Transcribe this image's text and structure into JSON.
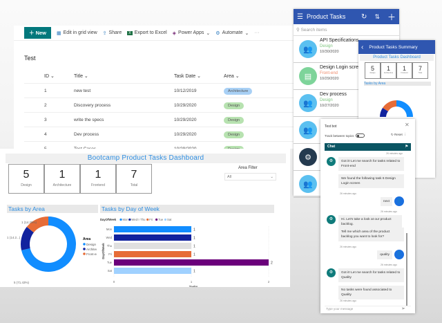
{
  "sharepoint": {
    "toolbar": {
      "new": "New",
      "edit_grid": "Edit in grid view",
      "share": "Share",
      "export": "Export to Excel",
      "power_apps": "Power Apps",
      "automate": "Automate",
      "more": "···"
    },
    "list_title": "Test",
    "columns": [
      "ID",
      "Title",
      "Task Date",
      "Area"
    ],
    "rows": [
      {
        "id": "1",
        "title": "new test",
        "date": "10/12/2019",
        "area": "Architecture",
        "color": "#a8d0f5"
      },
      {
        "id": "2",
        "title": "Discovery process",
        "date": "10/29/2020",
        "area": "Design",
        "color": "#b7e2b0"
      },
      {
        "id": "3",
        "title": "write the specs",
        "date": "10/29/2020",
        "area": "Design",
        "color": "#b7e2b0"
      },
      {
        "id": "4",
        "title": "Dev process",
        "date": "10/29/2020",
        "area": "Design",
        "color": "#b7e2b0"
      },
      {
        "id": "5",
        "title": "Test Cases",
        "date": "10/29/2020",
        "area": "Design",
        "color": "#b7e2b0"
      }
    ]
  },
  "powerbi": {
    "title": "Bootcamp Product Tasks Dashboard",
    "kpis": [
      {
        "value": "5",
        "label": "Design"
      },
      {
        "value": "1",
        "label": "Architecture"
      },
      {
        "value": "1",
        "label": "Frontend"
      },
      {
        "value": "7",
        "label": "Total"
      }
    ],
    "filter": {
      "label": "Area Filter",
      "value": "All"
    },
    "area_title": "Tasks by Area",
    "day_title": "Tasks by Day of Week"
  },
  "chart_data": [
    {
      "type": "pie",
      "title": "Tasks by Area",
      "legend_title": "Area",
      "legend_position": "right",
      "categories": [
        "Design",
        "Architecture",
        "Front-end"
      ],
      "values": [
        5,
        1,
        1
      ],
      "colors": [
        "#118dff",
        "#12239e",
        "#e66c37"
      ],
      "data_labels": [
        "5 (71.43%)",
        "1 (14.2...)",
        "1 (14.29%)"
      ]
    },
    {
      "type": "bar",
      "title": "Tasks by Day of Week",
      "legend_title": "DayOfWeek",
      "legend_position": "top-left",
      "categories": [
        "Mon",
        "Wed",
        "Thu",
        "Fri",
        "Tue",
        "Sat"
      ],
      "values": [
        1,
        1,
        1,
        1,
        2,
        1
      ],
      "colors": [
        "#118dff",
        "#12239e",
        "#e0e0e0",
        "#e66c37",
        "#6b007b",
        "#a0d1ff"
      ],
      "xlabel": "Tasks",
      "ylabel": "DayOfWeek",
      "xlim": [
        0,
        2
      ],
      "xticks": [
        "0",
        "1",
        "2"
      ]
    }
  ],
  "powerapp": {
    "title": "Product Tasks",
    "search_placeholder": "Search items",
    "items": [
      {
        "title": "API Specifications",
        "area": "Design",
        "date": "10/30/2020",
        "area_color": "#7cc47c",
        "icon": "team-icon",
        "icon_bg": "#5bc0f0"
      },
      {
        "title": "Design Login scree",
        "area": "Front-end",
        "date": "10/29/2020",
        "area_color": "#ef8a6a",
        "icon": "browser-window-icon",
        "icon_bg": "#7ed49a"
      },
      {
        "title": "Dev process",
        "area": "Design",
        "date": "10/27/2020",
        "area_color": "#7cc47c",
        "icon": "team-icon",
        "icon_bg": "#5bc0f0"
      }
    ]
  },
  "summary": {
    "title": "Product Tasks Summary",
    "dashboard": "Product Tasks Dashboard",
    "kpis": [
      {
        "value": "5",
        "label": "Design"
      },
      {
        "value": "1",
        "label": "Architecture"
      },
      {
        "value": "1",
        "label": "Frontend"
      },
      {
        "value": "7",
        "label": "Total"
      }
    ],
    "area_title": "Tasks by Area"
  },
  "chatbot": {
    "title": "Test bot",
    "track_label": "Track between topics",
    "reset": "Reset",
    "chat_label": "Chat",
    "input_placeholder": "Type your message",
    "ts": "26 minutes ago",
    "messages": [
      {
        "from": "bot",
        "text": "Got it! Let me search for tasks related to Front-end"
      },
      {
        "from": "bot",
        "text": "We found the following task 6 Design Login screen"
      },
      {
        "from": "user",
        "text": "next"
      },
      {
        "from": "bot",
        "text": "Hi. Let's take a look at our product backlog."
      },
      {
        "from": "bot",
        "text": "Tell me which area of the product backlog you want to look for?"
      },
      {
        "from": "user",
        "text": "quality"
      },
      {
        "from": "bot",
        "text": "Got it! Let me search for tasks related to Quality"
      },
      {
        "from": "bot",
        "text": "No tasks were found associated to Quality"
      }
    ]
  }
}
